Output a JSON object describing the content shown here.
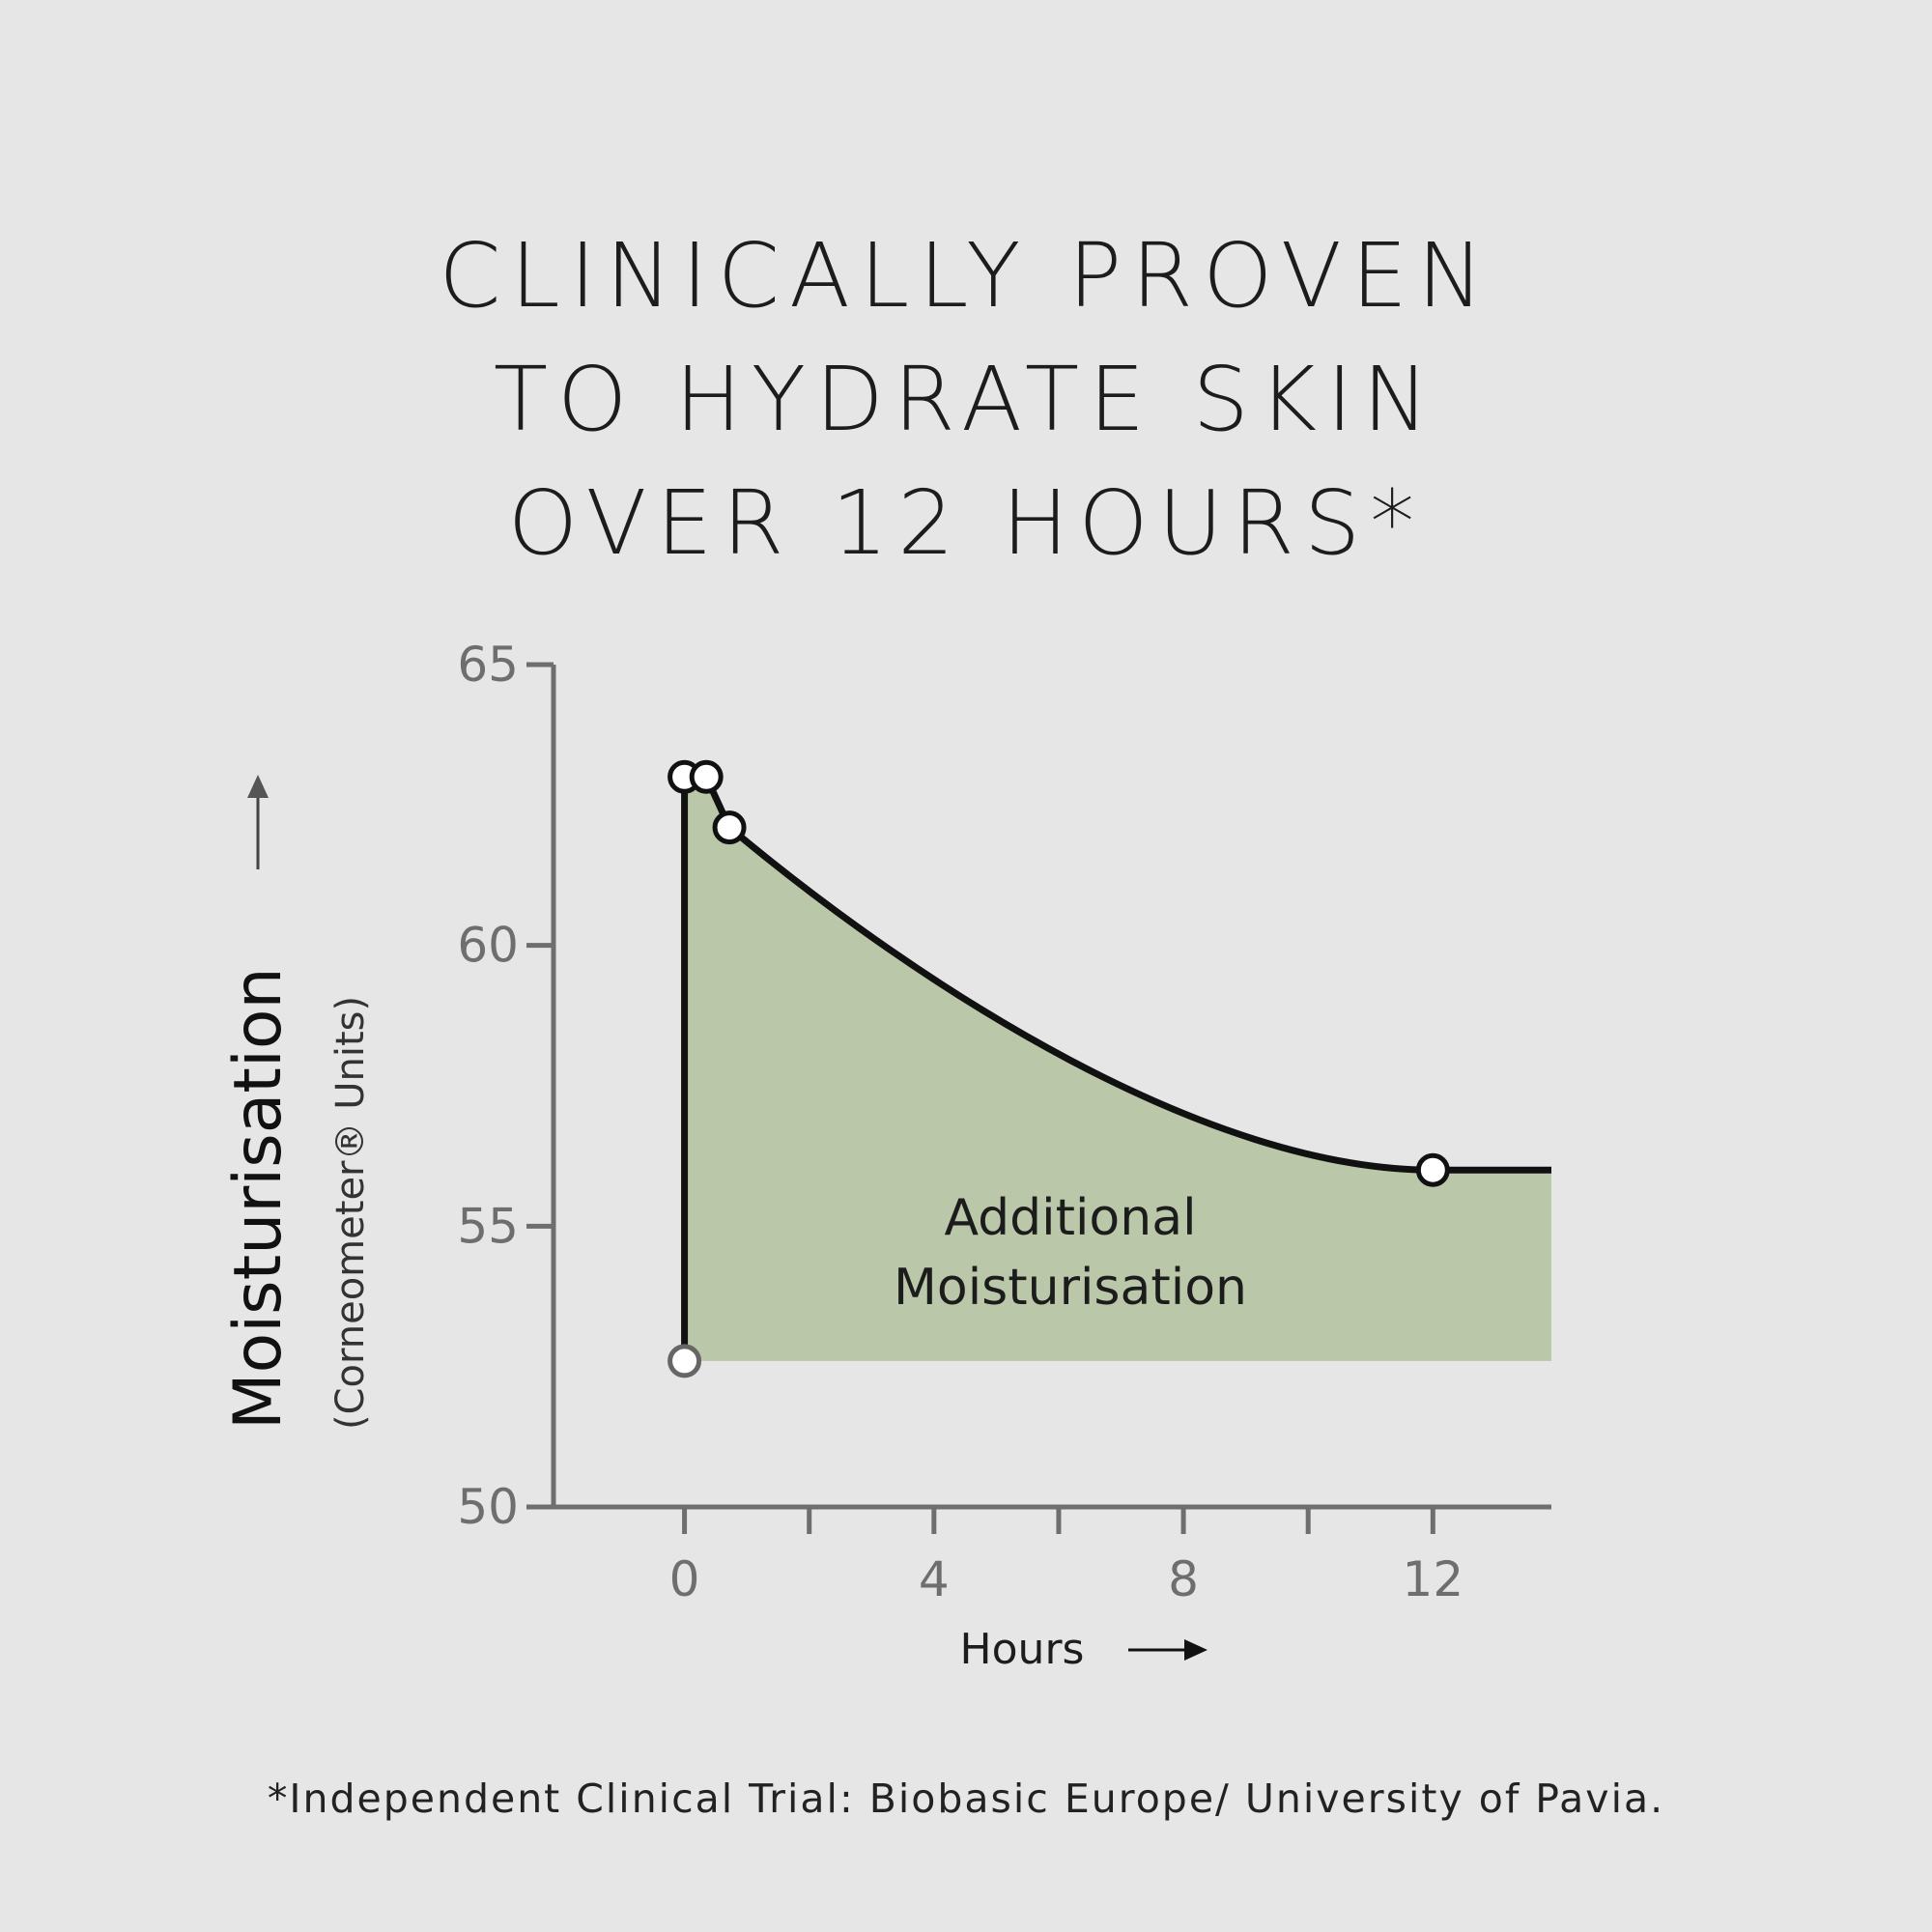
{
  "headline": {
    "line1": "CLINICALLY PROVEN",
    "line2": "TO HYDRATE SKIN",
    "line3": "OVER 12 HOURS*"
  },
  "footnote": "*Independent Clinical Trial: Biobasic Europe/ University of Pavia.",
  "colors": {
    "background": "#e6e6e6",
    "fill": "#bac8a9",
    "line": "#111111",
    "axis": "#6e6e6e"
  },
  "chart_data": {
    "type": "area",
    "title": "",
    "xlabel": "Hours",
    "ylabel": "Moisturisation",
    "ylabel_sub": "(Corneometer® Units)",
    "xlim": [
      -2.1,
      13.9
    ],
    "ylim": [
      50,
      65
    ],
    "x_ticks": [
      0,
      2,
      4,
      6,
      8,
      10,
      12
    ],
    "x_tick_labels": [
      "0",
      "4",
      "8",
      "12"
    ],
    "x_tick_label_values": [
      0,
      4,
      8,
      12
    ],
    "y_ticks": [
      50,
      55,
      60,
      65
    ],
    "y_tick_labels": [
      "50",
      "55",
      "60",
      "65"
    ],
    "baseline": 52.6,
    "points": [
      {
        "x": 0,
        "y": 52.6
      },
      {
        "x": 0,
        "y": 63
      },
      {
        "x": 0.35,
        "y": 63
      },
      {
        "x": 0.72,
        "y": 62.1
      },
      {
        "x": 12,
        "y": 56
      }
    ],
    "curve_end": {
      "x": 13.9,
      "y": 56
    },
    "annotation_line1": "Additional",
    "annotation_line2": "Moisturisation",
    "grid": false
  }
}
